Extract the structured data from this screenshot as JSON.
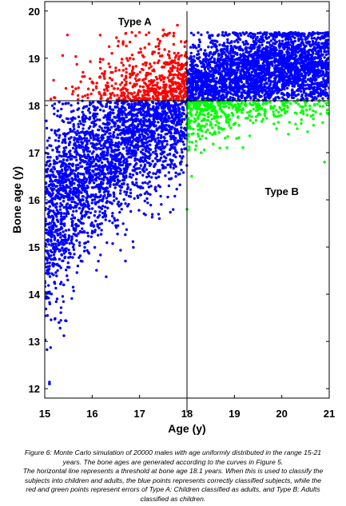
{
  "chart_data": {
    "type": "scatter",
    "xlabel": "Age (y)",
    "ylabel": "Bone age (y)",
    "xlim": [
      15,
      21
    ],
    "ylim": [
      11.8,
      20.2
    ],
    "x_ticks": [
      15,
      16,
      17,
      18,
      19,
      20,
      21
    ],
    "y_ticks": [
      12,
      13,
      14,
      15,
      16,
      17,
      18,
      19,
      20
    ],
    "grid": false,
    "threshold_lines": {
      "horizontal_bone_age": 18.1,
      "vertical_age": 18
    },
    "annotations": [
      {
        "text": "Type A",
        "x": 16.9,
        "y": 19.7
      },
      {
        "text": "Type B",
        "x": 20.0,
        "y": 16.1
      }
    ],
    "series": [
      {
        "color": "#0000ff",
        "points": [
          [
            15.1,
            12.1
          ],
          [
            15.3,
            13.4
          ],
          [
            15.4,
            14.2
          ],
          [
            15.6,
            15.0
          ],
          [
            15.8,
            15.8
          ],
          [
            16.1,
            16.3
          ],
          [
            16.4,
            16.8
          ],
          [
            16.8,
            17.3
          ],
          [
            17.2,
            17.7
          ],
          [
            17.6,
            18.0
          ],
          [
            18.2,
            18.3
          ],
          [
            18.6,
            18.7
          ],
          [
            19.0,
            18.9
          ],
          [
            19.5,
            19.1
          ],
          [
            20.0,
            19.3
          ],
          [
            20.5,
            19.4
          ],
          [
            20.9,
            19.2
          ]
        ]
      },
      {
        "color": "#ff0000",
        "points": [
          [
            15.6,
            18.3
          ],
          [
            16.0,
            18.5
          ],
          [
            16.4,
            18.7
          ],
          [
            16.8,
            19.0
          ],
          [
            17.2,
            19.3
          ],
          [
            17.5,
            19.6
          ],
          [
            17.8,
            19.7
          ],
          [
            17.9,
            18.5
          ]
        ]
      },
      {
        "color": "#00ff00",
        "points": [
          [
            18.0,
            15.8
          ],
          [
            18.1,
            16.5
          ],
          [
            18.3,
            17.0
          ],
          [
            18.6,
            17.4
          ],
          [
            19.0,
            17.6
          ],
          [
            19.5,
            17.8
          ],
          [
            20.0,
            17.9
          ],
          [
            20.5,
            18.0
          ],
          [
            20.9,
            16.8
          ]
        ]
      }
    ],
    "scatter_model": {
      "total_points": 20000,
      "age_range": [
        15,
        21
      ],
      "bone_age_intercept_at_15": 15.0,
      "bone_age_intercept_at_18": 18.1,
      "bone_age_plateau": 18.8,
      "spread_sd": 0.75
    }
  },
  "caption": {
    "line1": "Figure 6: Monte Carlo simulation of 20000 males with age uniformly distributed in the range 15-21",
    "line2": "years. The bone ages are generated according to the curves in Figure 5.",
    "line3": "The horizontal line represents a threshold at bone age 18.1 years.  When this is used to classify the",
    "line4": "subjects into children and adults, the blue points represents correctly classified subjects, while the",
    "line5": "red and green points represent errors of Type A: Children classified as adults, and Type B: Adults",
    "line6": "classified as children."
  }
}
